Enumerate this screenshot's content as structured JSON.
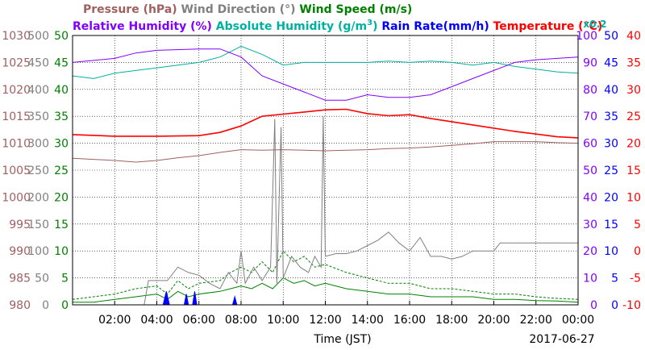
{
  "chart_data": {
    "type": "line",
    "legend_row1": [
      {
        "label": "Pressure (hPa)",
        "color": "#a06060"
      },
      {
        "label": "Wind Direction (°)",
        "color": "#808080"
      },
      {
        "label": "Wind Speed (m/s)",
        "color": "#008000"
      }
    ],
    "legend_row2": [
      {
        "label": "Relative Humidity (%)",
        "color": "#8000ff"
      },
      {
        "label": "Absolute Humidity (g/m",
        "sup": "3",
        "tail": ")",
        "color": "#00b0a0"
      },
      {
        "label": "Rain Rate(mm/h)",
        "color": "#0000ff"
      },
      {
        "label": "Temperature (°C)",
        "color": "#ff0000"
      }
    ],
    "abs_humidity_scale_label": "x0.2",
    "xlabel": "Time (JST)",
    "date_label": "2017-06-27",
    "x_ticks": [
      "02:00",
      "04:00",
      "06:00",
      "08:00",
      "10:00",
      "12:00",
      "14:00",
      "16:00",
      "18:00",
      "20:00",
      "22:00",
      "00:00"
    ],
    "xlim_hours": [
      0,
      24
    ],
    "grid": true,
    "axes": {
      "pressure": {
        "color": "#a06060",
        "ticks": [
          "980",
          "985",
          "990",
          "995",
          "1000",
          "1005",
          "1010",
          "1015",
          "1020",
          "1025",
          "1030"
        ]
      },
      "wind_direction": {
        "color": "#808080",
        "ticks": [
          "0",
          "50",
          "100",
          "150",
          "200",
          "250",
          "300",
          "350",
          "400",
          "450",
          "500"
        ]
      },
      "wind_speed": {
        "color": "#008000",
        "ticks": [
          "0",
          "5",
          "10",
          "15",
          "20",
          "25",
          "30",
          "35",
          "40",
          "45",
          "50"
        ]
      },
      "relative_humidity": {
        "color": "#8000ff",
        "ticks": [
          "0",
          "10",
          "20",
          "30",
          "40",
          "50",
          "60",
          "70",
          "80",
          "90",
          "100"
        ]
      },
      "rain_rate": {
        "color": "#0000ff",
        "ticks": [
          "0",
          "5",
          "10",
          "15",
          "20",
          "25",
          "30",
          "35",
          "40",
          "45",
          "50"
        ]
      },
      "temperature": {
        "color": "#ff0000",
        "ticks": [
          "-10",
          "-5",
          "0",
          "5",
          "10",
          "15",
          "20",
          "25",
          "30",
          "35",
          "40"
        ]
      }
    },
    "series": [
      {
        "name": "Pressure (hPa)",
        "color": "#a06060",
        "axis": "pressure",
        "ylim": [
          980,
          1030
        ],
        "points": [
          [
            0,
            1007.2
          ],
          [
            1,
            1007
          ],
          [
            2,
            1006.8
          ],
          [
            3,
            1006.5
          ],
          [
            4,
            1006.8
          ],
          [
            5,
            1007.3
          ],
          [
            6,
            1007.7
          ],
          [
            7,
            1008.3
          ],
          [
            8,
            1008.8
          ],
          [
            9,
            1008.7
          ],
          [
            10,
            1008.8
          ],
          [
            11,
            1008.7
          ],
          [
            12,
            1008.6
          ],
          [
            13,
            1008.7
          ],
          [
            14,
            1008.8
          ],
          [
            15,
            1009
          ],
          [
            16,
            1009.1
          ],
          [
            17,
            1009.3
          ],
          [
            18,
            1009.6
          ],
          [
            19,
            1009.9
          ],
          [
            20,
            1010.3
          ],
          [
            21,
            1010.3
          ],
          [
            22,
            1010.3
          ],
          [
            23,
            1010.1
          ],
          [
            24,
            1010
          ]
        ]
      },
      {
        "name": "Temperature (°C)",
        "color": "#ff0000",
        "axis": "temperature",
        "ylim": [
          -10,
          40
        ],
        "points": [
          [
            0,
            21.6
          ],
          [
            2,
            21.3
          ],
          [
            4,
            21.3
          ],
          [
            6,
            21.4
          ],
          [
            7,
            22
          ],
          [
            8,
            23.2
          ],
          [
            9,
            25
          ],
          [
            10,
            25.4
          ],
          [
            11,
            25.8
          ],
          [
            12,
            26.2
          ],
          [
            13,
            26.3
          ],
          [
            14,
            25.5
          ],
          [
            15,
            25.1
          ],
          [
            16,
            25.3
          ],
          [
            17,
            24.6
          ],
          [
            18,
            24
          ],
          [
            19,
            23.4
          ],
          [
            20,
            22.8
          ],
          [
            21,
            22.2
          ],
          [
            22,
            21.7
          ],
          [
            23,
            21.2
          ],
          [
            24,
            21
          ]
        ]
      },
      {
        "name": "Relative Humidity (%)",
        "color": "#8000ff",
        "axis": "relative_humidity",
        "ylim": [
          0,
          100
        ],
        "points": [
          [
            0,
            90
          ],
          [
            2,
            91.5
          ],
          [
            3,
            93.5
          ],
          [
            4,
            94.5
          ],
          [
            6,
            95
          ],
          [
            7,
            95
          ],
          [
            8,
            92
          ],
          [
            9,
            85
          ],
          [
            10,
            82
          ],
          [
            11,
            79
          ],
          [
            12,
            76
          ],
          [
            13,
            76
          ],
          [
            14,
            78
          ],
          [
            15,
            77
          ],
          [
            16,
            77
          ],
          [
            17,
            78
          ],
          [
            18,
            81
          ],
          [
            19,
            84
          ],
          [
            20,
            87
          ],
          [
            21,
            90
          ],
          [
            22,
            91
          ],
          [
            23,
            91.5
          ],
          [
            24,
            92
          ]
        ]
      },
      {
        "name": "Absolute Humidity (g/m3) x0.2",
        "color": "#00b0a0",
        "axis": "relative_humidity",
        "ylim": [
          0,
          100
        ],
        "points": [
          [
            0,
            85
          ],
          [
            1,
            84
          ],
          [
            2,
            86
          ],
          [
            3,
            87
          ],
          [
            4,
            88
          ],
          [
            5,
            89
          ],
          [
            6,
            90
          ],
          [
            7,
            92
          ],
          [
            8,
            96
          ],
          [
            9,
            93
          ],
          [
            10,
            89
          ],
          [
            11,
            90
          ],
          [
            12,
            90
          ],
          [
            13,
            90
          ],
          [
            14,
            90
          ],
          [
            15,
            90.5
          ],
          [
            16,
            90
          ],
          [
            17,
            90.5
          ],
          [
            18,
            90
          ],
          [
            19,
            89
          ],
          [
            20,
            90
          ],
          [
            21,
            88.5
          ],
          [
            22,
            87.5
          ],
          [
            23,
            86.5
          ],
          [
            24,
            86
          ]
        ]
      },
      {
        "name": "Wind Direction (°)",
        "color": "#808080",
        "axis": "wind_direction",
        "ylim": [
          0,
          500
        ],
        "points": [
          [
            0,
            0
          ],
          [
            3.4,
            0
          ],
          [
            3.6,
            45
          ],
          [
            4.5,
            45
          ],
          [
            5,
            70
          ],
          [
            5.5,
            60
          ],
          [
            6,
            55
          ],
          [
            6.5,
            40
          ],
          [
            7,
            30
          ],
          [
            7.4,
            60
          ],
          [
            7.8,
            40
          ],
          [
            8,
            100
          ],
          [
            8.2,
            40
          ],
          [
            8.6,
            70
          ],
          [
            9,
            45
          ],
          [
            9.4,
            70
          ],
          [
            9.6,
            345
          ],
          [
            9.7,
            40
          ],
          [
            9.9,
            330
          ],
          [
            10,
            50
          ],
          [
            10.4,
            90
          ],
          [
            10.8,
            70
          ],
          [
            11.2,
            60
          ],
          [
            11.5,
            90
          ],
          [
            11.8,
            70
          ],
          [
            11.9,
            350
          ],
          [
            12,
            90
          ],
          [
            12.5,
            95
          ],
          [
            13,
            95
          ],
          [
            13.5,
            100
          ],
          [
            14,
            110
          ],
          [
            14.5,
            120
          ],
          [
            15,
            135
          ],
          [
            15.5,
            115
          ],
          [
            16,
            100
          ],
          [
            16.5,
            125
          ],
          [
            17,
            90
          ],
          [
            17.5,
            90
          ],
          [
            18,
            85
          ],
          [
            18.5,
            90
          ],
          [
            19,
            100
          ],
          [
            20,
            100
          ],
          [
            20.3,
            115
          ],
          [
            21,
            115
          ],
          [
            22,
            115
          ],
          [
            23,
            115
          ],
          [
            24,
            115
          ]
        ]
      },
      {
        "name": "Wind Speed (m/s)",
        "color": "#008000",
        "axis": "wind_speed",
        "ylim": [
          0,
          50
        ],
        "points": [
          [
            0,
            0.5
          ],
          [
            1,
            0.5
          ],
          [
            2,
            1
          ],
          [
            3,
            1.5
          ],
          [
            4,
            2
          ],
          [
            4.5,
            1
          ],
          [
            5,
            2.5
          ],
          [
            5.5,
            1.5
          ],
          [
            6,
            2
          ],
          [
            7,
            2.5
          ],
          [
            7.5,
            3
          ],
          [
            8,
            3.5
          ],
          [
            8.5,
            3
          ],
          [
            9,
            4
          ],
          [
            9.5,
            3
          ],
          [
            10,
            5
          ],
          [
            10.5,
            4
          ],
          [
            11,
            4.5
          ],
          [
            11.5,
            3.5
          ],
          [
            12,
            4
          ],
          [
            13,
            3
          ],
          [
            14,
            2.5
          ],
          [
            15,
            2
          ],
          [
            16,
            2
          ],
          [
            17,
            1.5
          ],
          [
            18,
            1.5
          ],
          [
            19,
            1.5
          ],
          [
            20,
            1
          ],
          [
            21,
            1
          ],
          [
            22,
            0.8
          ],
          [
            23,
            0.7
          ],
          [
            24,
            0.5
          ]
        ]
      },
      {
        "name": "Wind Speed gust",
        "color": "#008000",
        "axis": "wind_speed",
        "ylim": [
          0,
          50
        ],
        "dashed": true,
        "points": [
          [
            0,
            1
          ],
          [
            1,
            1.5
          ],
          [
            2,
            2
          ],
          [
            3,
            3
          ],
          [
            4,
            3.5
          ],
          [
            4.5,
            2
          ],
          [
            5,
            4.5
          ],
          [
            5.5,
            3
          ],
          [
            6,
            4
          ],
          [
            7,
            4.5
          ],
          [
            7.5,
            6
          ],
          [
            8,
            7
          ],
          [
            8.5,
            6
          ],
          [
            9,
            8
          ],
          [
            9.5,
            6
          ],
          [
            10,
            10
          ],
          [
            10.5,
            8
          ],
          [
            11,
            9
          ],
          [
            11.5,
            7
          ],
          [
            12,
            7.5
          ],
          [
            13,
            6
          ],
          [
            14,
            5
          ],
          [
            15,
            4
          ],
          [
            16,
            4
          ],
          [
            17,
            3
          ],
          [
            18,
            3
          ],
          [
            19,
            2.5
          ],
          [
            20,
            2
          ],
          [
            21,
            2
          ],
          [
            22,
            1.5
          ],
          [
            23,
            1.2
          ],
          [
            24,
            1
          ]
        ]
      },
      {
        "name": "Rain Rate(mm/h)",
        "color": "#0000ff",
        "axis": "rain_rate",
        "ylim": [
          0,
          50
        ],
        "filled": true,
        "points": [
          [
            0,
            0
          ],
          [
            4.3,
            0
          ],
          [
            4.45,
            2.5
          ],
          [
            4.6,
            0
          ],
          [
            5.3,
            0
          ],
          [
            5.4,
            2
          ],
          [
            5.5,
            0
          ],
          [
            5.7,
            0
          ],
          [
            5.8,
            2.5
          ],
          [
            5.9,
            0
          ],
          [
            7.6,
            0
          ],
          [
            7.7,
            1.5
          ],
          [
            7.8,
            0
          ],
          [
            24,
            0
          ]
        ]
      }
    ]
  }
}
